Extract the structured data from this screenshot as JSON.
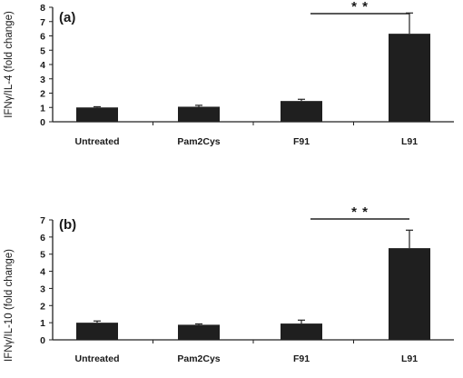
{
  "chart_data": [
    {
      "type": "bar",
      "panel_label": "(a)",
      "categories": [
        "Untreated",
        "Pam2Cys",
        "F91",
        "L91"
      ],
      "values": [
        1.0,
        1.05,
        1.45,
        6.15
      ],
      "error": [
        0.05,
        0.1,
        0.12,
        1.45
      ],
      "ylabel": "IFNγ/IL-4 (fold change)",
      "ylim": [
        0,
        8
      ],
      "yticks": [
        "0",
        "1",
        "2",
        "3",
        "4",
        "5",
        "6",
        "7",
        "8"
      ],
      "bar_color": "#1f1f1f",
      "significance": {
        "from": "F91",
        "to": "L91",
        "label": "* *"
      }
    },
    {
      "type": "bar",
      "panel_label": "(b)",
      "categories": [
        "Untreated",
        "Pam2Cys",
        "F91",
        "L91"
      ],
      "values": [
        1.0,
        0.88,
        0.95,
        5.35
      ],
      "error": [
        0.1,
        0.05,
        0.2,
        1.05
      ],
      "ylabel": "IFNγ/IL-10 (fold change)",
      "ylim": [
        0,
        7
      ],
      "yticks": [
        "0",
        "1",
        "2",
        "3",
        "4",
        "5",
        "6",
        "7"
      ],
      "bar_color": "#1f1f1f",
      "significance": {
        "from": "F91",
        "to": "L91",
        "label": "* *"
      }
    }
  ]
}
